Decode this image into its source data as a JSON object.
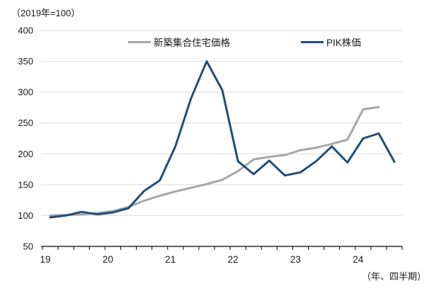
{
  "header": {
    "unit_note": "（2019年=100）"
  },
  "footer": {
    "axis_note": "（年、四半期）"
  },
  "legend": [
    {
      "label": "新築集合住宅価格",
      "color": "#a6a6a6"
    },
    {
      "label": "PIK株価",
      "color": "#1f4e79"
    }
  ],
  "colors": {
    "gridline": "#d9d9d9",
    "axis": "#000000",
    "tick_text": "#1a1a1a"
  },
  "chart_data": {
    "type": "line",
    "title": "",
    "xlabel": "（年、四半期）",
    "ylabel": "（2019年=100）",
    "ylim": [
      50,
      400
    ],
    "y_step": 50,
    "grid": "horizontal",
    "legend_position": "top",
    "x_year_labels": [
      "19",
      "20",
      "21",
      "22",
      "23",
      "24"
    ],
    "quarters_per_year": 4,
    "categories": [
      "19Q1",
      "19Q2",
      "19Q3",
      "19Q4",
      "20Q1",
      "20Q2",
      "20Q3",
      "20Q4",
      "21Q1",
      "21Q2",
      "21Q3",
      "21Q4",
      "22Q1",
      "22Q2",
      "22Q3",
      "22Q4",
      "23Q1",
      "23Q2",
      "23Q3",
      "23Q4",
      "24Q1",
      "24Q2",
      "24Q3"
    ],
    "series": [
      {
        "name": "新築集合住宅価格",
        "color": "#a6a6a6",
        "values": [
          100,
          101,
          102,
          104,
          107,
          114,
          124,
          132,
          139,
          145,
          151,
          158,
          172,
          191,
          195,
          198,
          206,
          210,
          216,
          223,
          272,
          276,
          null
        ]
      },
      {
        "name": "PIK株価",
        "color": "#1f4e79",
        "values": [
          97,
          100,
          106,
          102,
          105,
          112,
          140,
          157,
          212,
          290,
          350,
          303,
          188,
          167,
          189,
          165,
          170,
          188,
          212,
          186,
          225,
          233,
          187
        ]
      }
    ]
  }
}
